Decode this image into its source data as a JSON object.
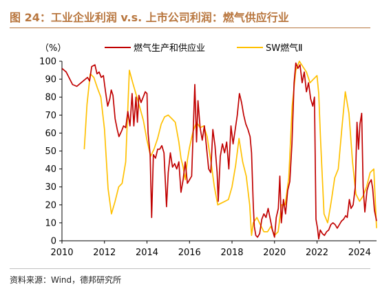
{
  "title": "图 24：工业企业利润 v.s. 上市公司利润：燃气供应行业",
  "source": "资料来源：Wind，德邦研究所",
  "chart_data": {
    "type": "line",
    "ylabel": "（%）",
    "ylim": [
      0,
      100
    ],
    "yticks": [
      0,
      10,
      20,
      30,
      40,
      50,
      60,
      70,
      80,
      90,
      100
    ],
    "xlim": [
      2010,
      2024.8
    ],
    "xticks": [
      2010,
      2012,
      2014,
      2016,
      2018,
      2020,
      2022,
      2024
    ],
    "legend": "top-center",
    "series": [
      {
        "name": "燃气生产和供应业",
        "color": "#c00000",
        "points": [
          [
            2010.0,
            96
          ],
          [
            2010.2,
            94
          ],
          [
            2010.5,
            87
          ],
          [
            2010.7,
            86
          ],
          [
            2011.0,
            89
          ],
          [
            2011.2,
            91
          ],
          [
            2011.3,
            89
          ],
          [
            2011.4,
            97
          ],
          [
            2011.55,
            98
          ],
          [
            2011.65,
            93
          ],
          [
            2011.75,
            94
          ],
          [
            2011.85,
            91
          ],
          [
            2011.95,
            92
          ],
          [
            2012.05,
            83
          ],
          [
            2012.15,
            75
          ],
          [
            2012.25,
            79
          ],
          [
            2012.32,
            84
          ],
          [
            2012.4,
            81
          ],
          [
            2012.5,
            68
          ],
          [
            2012.6,
            62
          ],
          [
            2012.68,
            58
          ],
          [
            2012.8,
            61
          ],
          [
            2012.9,
            64
          ],
          [
            2013.0,
            63
          ],
          [
            2013.1,
            72
          ],
          [
            2013.2,
            64
          ],
          [
            2013.3,
            82
          ],
          [
            2013.38,
            64
          ],
          [
            2013.48,
            80
          ],
          [
            2013.55,
            66
          ],
          [
            2013.62,
            81
          ],
          [
            2013.72,
            77
          ],
          [
            2013.82,
            80
          ],
          [
            2013.92,
            83
          ],
          [
            2014.0,
            82
          ],
          [
            2014.05,
            60
          ],
          [
            2014.15,
            48
          ],
          [
            2014.22,
            13
          ],
          [
            2014.3,
            48
          ],
          [
            2014.4,
            46
          ],
          [
            2014.5,
            51
          ],
          [
            2014.6,
            51
          ],
          [
            2014.7,
            53
          ],
          [
            2014.8,
            49
          ],
          [
            2014.92,
            19
          ],
          [
            2015.0,
            38
          ],
          [
            2015.1,
            49
          ],
          [
            2015.2,
            41
          ],
          [
            2015.3,
            43
          ],
          [
            2015.4,
            40
          ],
          [
            2015.5,
            44
          ],
          [
            2015.6,
            27
          ],
          [
            2015.7,
            34
          ],
          [
            2015.8,
            44
          ],
          [
            2015.9,
            32
          ],
          [
            2016.0,
            34
          ],
          [
            2016.1,
            36
          ],
          [
            2016.25,
            87
          ],
          [
            2016.33,
            55
          ],
          [
            2016.4,
            78
          ],
          [
            2016.5,
            63
          ],
          [
            2016.6,
            56
          ],
          [
            2016.7,
            64
          ],
          [
            2016.8,
            52
          ],
          [
            2016.9,
            40
          ],
          [
            2017.0,
            38
          ],
          [
            2017.1,
            62
          ],
          [
            2017.2,
            53
          ],
          [
            2017.3,
            38
          ],
          [
            2017.35,
            22
          ],
          [
            2017.45,
            47
          ],
          [
            2017.55,
            54
          ],
          [
            2017.65,
            49
          ],
          [
            2017.75,
            55
          ],
          [
            2017.85,
            40
          ],
          [
            2017.95,
            64
          ],
          [
            2018.05,
            54
          ],
          [
            2018.15,
            62
          ],
          [
            2018.25,
            70
          ],
          [
            2018.35,
            82
          ],
          [
            2018.45,
            77
          ],
          [
            2018.55,
            70
          ],
          [
            2018.65,
            65
          ],
          [
            2018.75,
            62
          ],
          [
            2018.85,
            58
          ],
          [
            2018.92,
            49
          ],
          [
            2019.0,
            20
          ],
          [
            2019.05,
            8
          ],
          [
            2019.12,
            3
          ],
          [
            2019.2,
            2
          ],
          [
            2019.3,
            4
          ],
          [
            2019.4,
            12
          ],
          [
            2019.5,
            15
          ],
          [
            2019.6,
            13
          ],
          [
            2019.7,
            18
          ],
          [
            2019.8,
            12
          ],
          [
            2019.9,
            6
          ],
          [
            2020.0,
            2
          ],
          [
            2020.08,
            13
          ],
          [
            2020.18,
            18
          ],
          [
            2020.25,
            36
          ],
          [
            2020.32,
            10
          ],
          [
            2020.42,
            23
          ],
          [
            2020.52,
            15
          ],
          [
            2020.62,
            28
          ],
          [
            2020.72,
            33
          ],
          [
            2020.82,
            54
          ],
          [
            2020.92,
            88
          ],
          [
            2021.0,
            99
          ],
          [
            2021.1,
            96
          ],
          [
            2021.2,
            98
          ],
          [
            2021.3,
            88
          ],
          [
            2021.4,
            94
          ],
          [
            2021.5,
            83
          ],
          [
            2021.6,
            88
          ],
          [
            2021.7,
            79
          ],
          [
            2021.8,
            75
          ],
          [
            2021.88,
            80
          ],
          [
            2021.95,
            12
          ],
          [
            2022.02,
            7
          ],
          [
            2022.08,
            1
          ],
          [
            2022.15,
            6
          ],
          [
            2022.25,
            4
          ],
          [
            2022.35,
            3
          ],
          [
            2022.45,
            5
          ],
          [
            2022.55,
            6
          ],
          [
            2022.65,
            9
          ],
          [
            2022.75,
            10
          ],
          [
            2022.85,
            9
          ],
          [
            2022.95,
            7
          ],
          [
            2023.05,
            9
          ],
          [
            2023.15,
            11
          ],
          [
            2023.25,
            12
          ],
          [
            2023.35,
            14
          ],
          [
            2023.42,
            13
          ],
          [
            2023.52,
            23
          ],
          [
            2023.6,
            18
          ],
          [
            2023.7,
            20
          ],
          [
            2023.8,
            30
          ],
          [
            2023.88,
            66
          ],
          [
            2023.95,
            51
          ],
          [
            2024.02,
            65
          ],
          [
            2024.1,
            71
          ],
          [
            2024.17,
            30
          ],
          [
            2024.25,
            16
          ],
          [
            2024.35,
            28
          ],
          [
            2024.45,
            32
          ],
          [
            2024.55,
            34
          ],
          [
            2024.62,
            29
          ],
          [
            2024.7,
            17
          ],
          [
            2024.8,
            11
          ]
        ]
      },
      {
        "name": "SW燃气Ⅱ",
        "color": "#ffc000",
        "points": [
          [
            2011.05,
            51
          ],
          [
            2011.18,
            76
          ],
          [
            2011.33,
            93
          ],
          [
            2011.5,
            91
          ],
          [
            2011.67,
            85
          ],
          [
            2011.83,
            80
          ],
          [
            2012.0,
            62
          ],
          [
            2012.17,
            29
          ],
          [
            2012.33,
            15
          ],
          [
            2012.5,
            22
          ],
          [
            2012.67,
            30
          ],
          [
            2012.83,
            32
          ],
          [
            2013.0,
            44
          ],
          [
            2013.17,
            95
          ],
          [
            2013.33,
            88
          ],
          [
            2013.5,
            81
          ],
          [
            2013.67,
            74
          ],
          [
            2013.83,
            67
          ],
          [
            2014.0,
            56
          ],
          [
            2014.17,
            47
          ],
          [
            2014.33,
            51
          ],
          [
            2014.5,
            57
          ],
          [
            2014.67,
            65
          ],
          [
            2014.83,
            69
          ],
          [
            2015.0,
            70
          ],
          [
            2015.17,
            68
          ],
          [
            2015.33,
            66
          ],
          [
            2015.5,
            55
          ],
          [
            2015.6,
            46
          ],
          [
            2015.7,
            41
          ],
          [
            2015.8,
            34
          ],
          [
            2015.9,
            45
          ],
          [
            2016.0,
            52
          ],
          [
            2016.17,
            61
          ],
          [
            2016.33,
            66
          ],
          [
            2016.5,
            63
          ],
          [
            2016.67,
            64
          ],
          [
            2016.83,
            58
          ],
          [
            2017.0,
            45
          ],
          [
            2017.17,
            30
          ],
          [
            2017.33,
            20
          ],
          [
            2017.5,
            21
          ],
          [
            2017.67,
            22
          ],
          [
            2017.83,
            23
          ],
          [
            2018.0,
            30
          ],
          [
            2018.17,
            42
          ],
          [
            2018.33,
            57
          ],
          [
            2018.5,
            44
          ],
          [
            2018.67,
            36
          ],
          [
            2018.83,
            20
          ],
          [
            2018.92,
            3
          ],
          [
            2019.0,
            10
          ],
          [
            2019.17,
            13
          ],
          [
            2019.33,
            9
          ],
          [
            2019.5,
            5
          ],
          [
            2019.67,
            5
          ],
          [
            2019.83,
            8
          ],
          [
            2020.0,
            3
          ],
          [
            2020.17,
            5
          ],
          [
            2020.33,
            20
          ],
          [
            2020.5,
            20
          ],
          [
            2020.67,
            35
          ],
          [
            2020.83,
            75
          ],
          [
            2021.0,
            95
          ],
          [
            2021.17,
            100
          ],
          [
            2021.33,
            97
          ],
          [
            2021.5,
            94
          ],
          [
            2021.67,
            88
          ],
          [
            2021.83,
            90
          ],
          [
            2022.0,
            92
          ],
          [
            2022.08,
            82
          ],
          [
            2022.17,
            55
          ],
          [
            2022.33,
            15
          ],
          [
            2022.5,
            10
          ],
          [
            2022.67,
            22
          ],
          [
            2022.83,
            35
          ],
          [
            2023.0,
            40
          ],
          [
            2023.17,
            63
          ],
          [
            2023.33,
            83
          ],
          [
            2023.5,
            71
          ],
          [
            2023.67,
            44
          ],
          [
            2023.83,
            26
          ],
          [
            2024.0,
            22
          ],
          [
            2024.17,
            25
          ],
          [
            2024.33,
            30
          ],
          [
            2024.5,
            38
          ],
          [
            2024.67,
            40
          ],
          [
            2024.8,
            7
          ]
        ]
      }
    ]
  }
}
